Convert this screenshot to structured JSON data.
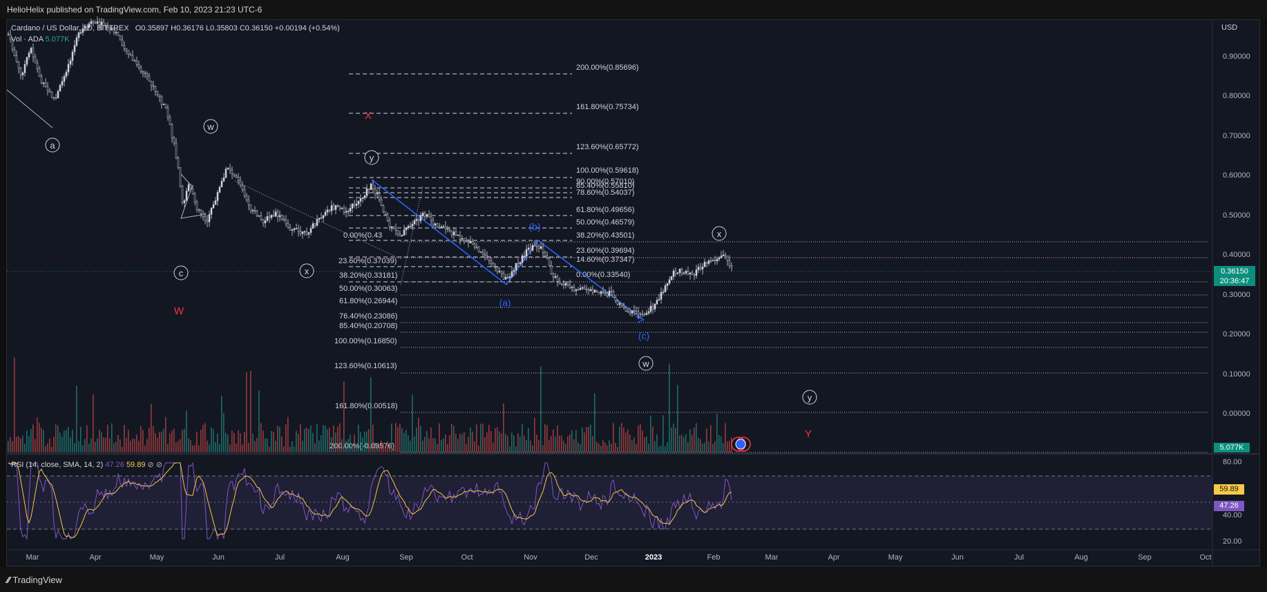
{
  "header": {
    "published": "HelioHelix published on TradingView.com, Feb 10, 2023 21:23 UTC-6"
  },
  "legend": {
    "symbol": "Cardano / US Dollar, 1D, BITTREX",
    "open": "O0.35897",
    "high": "H0.36176",
    "low": "L0.35803",
    "close": "C0.36150",
    "change": "+0.00194 (+0.54%)",
    "vol_label": "Vol · ADA",
    "vol_value": "5.077K"
  },
  "rsi": {
    "label": "RSI (14, close, SMA, 14, 2)",
    "value": "47.26",
    "sma": "59.89",
    "icon1": "⊘",
    "icon2": "⊘"
  },
  "price_axis": {
    "currency": "USD",
    "labels": [
      "0.90000",
      "0.80000",
      "0.70000",
      "0.60000",
      "0.50000",
      "0.40000",
      "0.30000",
      "0.20000",
      "0.10000",
      "0.00000"
    ],
    "last_price": "0.36150",
    "countdown": "20:36:47",
    "vol_badge": "5.077K"
  },
  "rsi_axis": {
    "labels": [
      "80.00",
      "40.00",
      "20.00"
    ],
    "sma_badge": "59.89",
    "rsi_badge": "47.26"
  },
  "time_axis": {
    "labels": [
      "Mar",
      "Apr",
      "May",
      "Jun",
      "Jul",
      "Aug",
      "Sep",
      "Oct",
      "Nov",
      "Dec",
      "2023",
      "Feb",
      "Mar",
      "Apr",
      "May",
      "Jun",
      "Jul",
      "Aug",
      "Sep",
      "Oct"
    ]
  },
  "fib_upper": [
    {
      "label": "200.00%(0.85696)"
    },
    {
      "label": "161.80%(0.75734)"
    },
    {
      "label": "123.60%(0.65772)"
    },
    {
      "label": "100.00%(0.59618)"
    },
    {
      "label": "90.00%(0.57010)"
    },
    {
      "label": "85.40%(0.55810)"
    },
    {
      "label": "78.60%(0.54037)"
    },
    {
      "label": "61.80%(0.49656)"
    },
    {
      "label": "50.00%(0.46579)"
    },
    {
      "label": "38.20%(0.43501)"
    },
    {
      "label": "23.60%(0.39694)"
    },
    {
      "label": "14.60%(0.37347)"
    },
    {
      "label": "0.00%(0.33540)"
    }
  ],
  "fib_lower": [
    {
      "label": "0.00%(0.43"
    },
    {
      "label": "23.60%(0.37039)"
    },
    {
      "label": "38.20%(0.33181)"
    },
    {
      "label": "50.00%(0.30063)"
    },
    {
      "label": "61.80%(0.26944)"
    },
    {
      "label": "76.40%(0.23086)"
    },
    {
      "label": "85.40%(0.20708)"
    },
    {
      "label": "100.00%(0.16850)"
    },
    {
      "label": "123.60%(0.10613)"
    },
    {
      "label": "161.80%(0.00518)"
    },
    {
      "label": "200.00%(-0.09576)"
    }
  ],
  "waves": {
    "a": "a",
    "c": "c",
    "w1": "w",
    "x1": "x",
    "y1": "y",
    "x2": "x",
    "w2": "w",
    "y2": "y",
    "pa": "(a)",
    "pb": "(b)",
    "pc": "(c)",
    "W": "W",
    "X": "X",
    "Y": "Y"
  },
  "footer": {
    "brand": "TradingView"
  },
  "colors": {
    "up": "#26a69a",
    "down": "#ef5350",
    "rsi": "#7e57c2",
    "rsi_sma": "#f7c948",
    "wave_blue": "#2962ff",
    "wave_red": "#f23645"
  }
}
